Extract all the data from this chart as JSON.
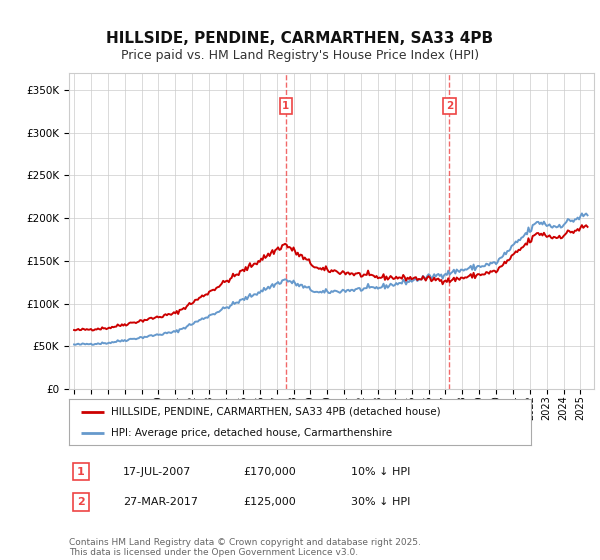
{
  "title": "HILLSIDE, PENDINE, CARMARTHEN, SA33 4PB",
  "subtitle": "Price paid vs. HM Land Registry's House Price Index (HPI)",
  "ylim": [
    0,
    370000
  ],
  "yticks": [
    0,
    50000,
    100000,
    150000,
    200000,
    250000,
    300000,
    350000
  ],
  "xlim_start": 1994.7,
  "xlim_end": 2025.8,
  "legend_line1": "HILLSIDE, PENDINE, CARMARTHEN, SA33 4PB (detached house)",
  "legend_line2": "HPI: Average price, detached house, Carmarthenshire",
  "transaction1_date": "17-JUL-2007",
  "transaction1_price": "£170,000",
  "transaction1_pct": "10% ↓ HPI",
  "transaction1_x": 2007.54,
  "transaction2_date": "27-MAR-2017",
  "transaction2_price": "£125,000",
  "transaction2_pct": "30% ↓ HPI",
  "transaction2_x": 2017.23,
  "footer": "Contains HM Land Registry data © Crown copyright and database right 2025.\nThis data is licensed under the Open Government Licence v3.0.",
  "property_color": "#cc0000",
  "hpi_color": "#6699cc",
  "vline_color": "#ee4444",
  "background_color": "#ffffff",
  "grid_color": "#cccccc",
  "title_fontsize": 11,
  "subtitle_fontsize": 9,
  "footer_fontsize": 6.5
}
